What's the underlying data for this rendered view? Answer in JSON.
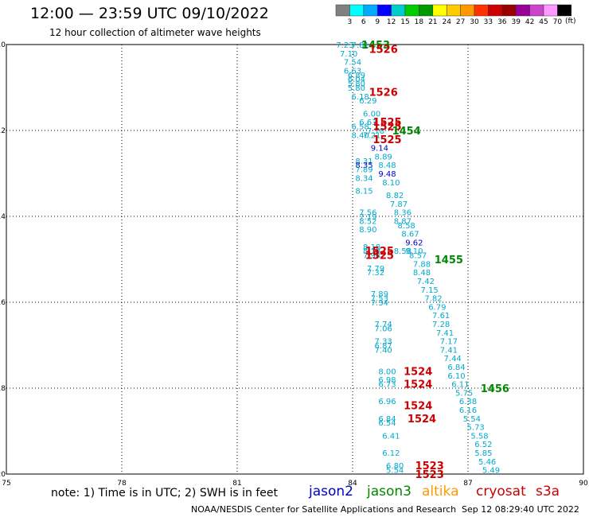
{
  "header": {
    "title": "12:00  —  23:59 UTC 09/10/2022",
    "subtitle": "12 hour collection of altimeter wave heights"
  },
  "legend_scale": {
    "colors": [
      "#808080",
      "#00ffff",
      "#00aaff",
      "#0000ff",
      "#00cccc",
      "#00cc00",
      "#009900",
      "#ffff00",
      "#ffcc00",
      "#ff9900",
      "#ff3300",
      "#cc0000",
      "#990000",
      "#990099",
      "#cc44cc",
      "#ff99ff",
      "#000000"
    ],
    "labels": [
      "3",
      "6",
      "9",
      "12",
      "15",
      "18",
      "21",
      "24",
      "27",
      "30",
      "33",
      "36",
      "39",
      "42",
      "45",
      "70"
    ],
    "unit": "(ft)"
  },
  "footer": {
    "note": "note:  1)  Time is in UTC;  2)  SWH is in feet",
    "credit": "NOAA/NESDIS Center for Satellite Applications and Research",
    "timestamp": "Sep 12 08:29:40 UTC 2022"
  },
  "satellites": [
    {
      "label": "jason2",
      "color": "#0000cc"
    },
    {
      "label": "jason3",
      "color": "#008800"
    },
    {
      "label": "altika",
      "color": "#ff9900"
    },
    {
      "label": "cryosat",
      "color": "#cc0000"
    },
    {
      "label": "s3a",
      "color": "#cc0000"
    }
  ],
  "chart_data": {
    "type": "scatter",
    "xlim": [
      75,
      90
    ],
    "ylim": [
      -20,
      -10
    ],
    "x_ticks": [
      "75",
      "78",
      "81",
      "84",
      "87",
      "90"
    ],
    "y_ticks": [
      "-10",
      "-12",
      "-14",
      "-16",
      "-18",
      "-20"
    ],
    "grid": true,
    "wave_heights": [
      {
        "lon": 83.8,
        "lat": -10.0,
        "v": "7.23",
        "c": "#00aacc"
      },
      {
        "lon": 84.2,
        "lat": -10.0,
        "v": "7.81",
        "c": "#00aacc"
      },
      {
        "lon": 83.9,
        "lat": -10.2,
        "v": "7.10",
        "c": "#00aacc"
      },
      {
        "lon": 84.0,
        "lat": -10.4,
        "v": "7.54",
        "c": "#00aacc"
      },
      {
        "lon": 84.0,
        "lat": -10.6,
        "v": "6.63",
        "c": "#00aacc"
      },
      {
        "lon": 84.1,
        "lat": -10.7,
        "v": "6.89",
        "c": "#00aacc"
      },
      {
        "lon": 84.1,
        "lat": -10.8,
        "v": "6.04",
        "c": "#00aacc"
      },
      {
        "lon": 84.1,
        "lat": -10.9,
        "v": "5.80",
        "c": "#00aacc"
      },
      {
        "lon": 84.1,
        "lat": -11.0,
        "v": "5.80",
        "c": "#00aacc"
      },
      {
        "lon": 84.2,
        "lat": -11.2,
        "v": "6.18",
        "c": "#00aacc"
      },
      {
        "lon": 84.4,
        "lat": -11.3,
        "v": "6.29",
        "c": "#00aacc"
      },
      {
        "lon": 84.5,
        "lat": -11.6,
        "v": "6.00",
        "c": "#00aacc"
      },
      {
        "lon": 84.4,
        "lat": -11.8,
        "v": "6.63",
        "c": "#00aacc"
      },
      {
        "lon": 84.2,
        "lat": -11.9,
        "v": "6.58",
        "c": "#00aacc"
      },
      {
        "lon": 84.6,
        "lat": -12.0,
        "v": "7.78",
        "c": "#00aacc"
      },
      {
        "lon": 84.5,
        "lat": -12.1,
        "v": "7.21",
        "c": "#00aacc"
      },
      {
        "lon": 84.2,
        "lat": -12.1,
        "v": "8.40",
        "c": "#00aacc"
      },
      {
        "lon": 84.7,
        "lat": -12.4,
        "v": "9.14",
        "c": "#0000cc"
      },
      {
        "lon": 84.8,
        "lat": -12.6,
        "v": "8.89",
        "c": "#00aacc"
      },
      {
        "lon": 84.3,
        "lat": -12.7,
        "v": "8.31",
        "c": "#00aacc"
      },
      {
        "lon": 84.3,
        "lat": -12.8,
        "v": "8.35",
        "c": "#0000cc"
      },
      {
        "lon": 84.9,
        "lat": -12.8,
        "v": "8.48",
        "c": "#00aacc"
      },
      {
        "lon": 84.3,
        "lat": -12.9,
        "v": "7.89",
        "c": "#00aacc"
      },
      {
        "lon": 84.3,
        "lat": -13.1,
        "v": "8.34",
        "c": "#00aacc"
      },
      {
        "lon": 84.9,
        "lat": -13.0,
        "v": "9.48",
        "c": "#0000cc"
      },
      {
        "lon": 85.0,
        "lat": -13.2,
        "v": "8.10",
        "c": "#00aacc"
      },
      {
        "lon": 84.3,
        "lat": -13.4,
        "v": "8.15",
        "c": "#00aacc"
      },
      {
        "lon": 85.1,
        "lat": -13.5,
        "v": "8.82",
        "c": "#00aacc"
      },
      {
        "lon": 85.2,
        "lat": -13.7,
        "v": "7.87",
        "c": "#00aacc"
      },
      {
        "lon": 84.4,
        "lat": -13.9,
        "v": "7.56",
        "c": "#00aacc"
      },
      {
        "lon": 84.4,
        "lat": -14.0,
        "v": "7.19",
        "c": "#00aacc"
      },
      {
        "lon": 85.3,
        "lat": -13.9,
        "v": "8.36",
        "c": "#00aacc"
      },
      {
        "lon": 85.3,
        "lat": -14.1,
        "v": "8.87",
        "c": "#00aacc"
      },
      {
        "lon": 84.4,
        "lat": -14.1,
        "v": "8.52",
        "c": "#00aacc"
      },
      {
        "lon": 85.4,
        "lat": -14.2,
        "v": "8.58",
        "c": "#00aacc"
      },
      {
        "lon": 84.4,
        "lat": -14.3,
        "v": "8.90",
        "c": "#00aacc"
      },
      {
        "lon": 85.5,
        "lat": -14.4,
        "v": "8.67",
        "c": "#00aacc"
      },
      {
        "lon": 85.6,
        "lat": -14.6,
        "v": "9.62",
        "c": "#0000cc"
      },
      {
        "lon": 84.5,
        "lat": -14.7,
        "v": "8.18",
        "c": "#00aacc"
      },
      {
        "lon": 84.5,
        "lat": -14.8,
        "v": "8.18",
        "c": "#00aacc"
      },
      {
        "lon": 85.3,
        "lat": -14.8,
        "v": "8.58",
        "c": "#00aacc"
      },
      {
        "lon": 85.6,
        "lat": -14.8,
        "v": "9.10",
        "c": "#00aacc"
      },
      {
        "lon": 84.5,
        "lat": -14.9,
        "v": "7.94",
        "c": "#00aacc"
      },
      {
        "lon": 85.7,
        "lat": -14.9,
        "v": "8.57",
        "c": "#00aacc"
      },
      {
        "lon": 85.8,
        "lat": -15.1,
        "v": "7.88",
        "c": "#00aacc"
      },
      {
        "lon": 84.6,
        "lat": -15.2,
        "v": "7.79",
        "c": "#00aacc"
      },
      {
        "lon": 85.8,
        "lat": -15.3,
        "v": "8.48",
        "c": "#00aacc"
      },
      {
        "lon": 84.6,
        "lat": -15.3,
        "v": "7.32",
        "c": "#00aacc"
      },
      {
        "lon": 85.9,
        "lat": -15.5,
        "v": "7.42",
        "c": "#00aacc"
      },
      {
        "lon": 86.0,
        "lat": -15.7,
        "v": "7.15",
        "c": "#00aacc"
      },
      {
        "lon": 84.7,
        "lat": -15.8,
        "v": "7.89",
        "c": "#00aacc"
      },
      {
        "lon": 86.1,
        "lat": -15.9,
        "v": "7.82",
        "c": "#00aacc"
      },
      {
        "lon": 84.7,
        "lat": -15.9,
        "v": "7.53",
        "c": "#00aacc"
      },
      {
        "lon": 84.7,
        "lat": -16.0,
        "v": "7.34",
        "c": "#00aacc"
      },
      {
        "lon": 86.2,
        "lat": -16.1,
        "v": "6.79",
        "c": "#00aacc"
      },
      {
        "lon": 86.3,
        "lat": -16.3,
        "v": "7.61",
        "c": "#00aacc"
      },
      {
        "lon": 84.8,
        "lat": -16.5,
        "v": "7.74",
        "c": "#00aacc"
      },
      {
        "lon": 86.3,
        "lat": -16.5,
        "v": "7.28",
        "c": "#00aacc"
      },
      {
        "lon": 84.8,
        "lat": -16.6,
        "v": "7.06",
        "c": "#00aacc"
      },
      {
        "lon": 86.4,
        "lat": -16.7,
        "v": "7.41",
        "c": "#00aacc"
      },
      {
        "lon": 84.8,
        "lat": -16.9,
        "v": "7.33",
        "c": "#00aacc"
      },
      {
        "lon": 86.5,
        "lat": -16.9,
        "v": "7.17",
        "c": "#00aacc"
      },
      {
        "lon": 84.8,
        "lat": -17.0,
        "v": "6.87",
        "c": "#00aacc"
      },
      {
        "lon": 86.5,
        "lat": -17.1,
        "v": "7.41",
        "c": "#00aacc"
      },
      {
        "lon": 84.8,
        "lat": -17.1,
        "v": "7.40",
        "c": "#00aacc"
      },
      {
        "lon": 86.6,
        "lat": -17.3,
        "v": "7.44",
        "c": "#00aacc"
      },
      {
        "lon": 86.7,
        "lat": -17.5,
        "v": "6.84",
        "c": "#00aacc"
      },
      {
        "lon": 84.9,
        "lat": -17.6,
        "v": "8.00",
        "c": "#00aacc"
      },
      {
        "lon": 86.7,
        "lat": -17.7,
        "v": "6.10",
        "c": "#00aacc"
      },
      {
        "lon": 84.9,
        "lat": -17.8,
        "v": "6.98",
        "c": "#00aacc"
      },
      {
        "lon": 84.9,
        "lat": -17.9,
        "v": "6.73",
        "c": "#00aacc"
      },
      {
        "lon": 86.8,
        "lat": -17.9,
        "v": "6.11",
        "c": "#00aacc"
      },
      {
        "lon": 86.9,
        "lat": -18.1,
        "v": "5.75",
        "c": "#00aacc"
      },
      {
        "lon": 84.9,
        "lat": -18.3,
        "v": "6.96",
        "c": "#00aacc"
      },
      {
        "lon": 87.0,
        "lat": -18.3,
        "v": "6.38",
        "c": "#00aacc"
      },
      {
        "lon": 87.0,
        "lat": -18.5,
        "v": "6.16",
        "c": "#00aacc"
      },
      {
        "lon": 84.9,
        "lat": -18.7,
        "v": "6.84",
        "c": "#00aacc"
      },
      {
        "lon": 84.9,
        "lat": -18.8,
        "v": "6.54",
        "c": "#00aacc"
      },
      {
        "lon": 87.1,
        "lat": -18.7,
        "v": "5.54",
        "c": "#00aacc"
      },
      {
        "lon": 87.2,
        "lat": -18.9,
        "v": "5.73",
        "c": "#00aacc"
      },
      {
        "lon": 85.0,
        "lat": -19.1,
        "v": "6.41",
        "c": "#00aacc"
      },
      {
        "lon": 87.3,
        "lat": -19.1,
        "v": "5.58",
        "c": "#00aacc"
      },
      {
        "lon": 87.4,
        "lat": -19.3,
        "v": "6.52",
        "c": "#00aacc"
      },
      {
        "lon": 85.0,
        "lat": -19.5,
        "v": "6.12",
        "c": "#00aacc"
      },
      {
        "lon": 87.4,
        "lat": -19.5,
        "v": "5.85",
        "c": "#00aacc"
      },
      {
        "lon": 87.5,
        "lat": -19.7,
        "v": "5.46",
        "c": "#00aacc"
      },
      {
        "lon": 85.1,
        "lat": -19.8,
        "v": "6.80",
        "c": "#00aacc"
      },
      {
        "lon": 87.6,
        "lat": -19.9,
        "v": "5.49",
        "c": "#00aacc"
      },
      {
        "lon": 85.1,
        "lat": -19.9,
        "v": "5.54",
        "c": "#00aacc"
      }
    ],
    "pass_times": [
      {
        "lon": 84.6,
        "lat": -10.0,
        "v": "1453",
        "c": "#008800"
      },
      {
        "lon": 84.8,
        "lat": -10.1,
        "v": "1526",
        "c": "#cc0000"
      },
      {
        "lon": 84.8,
        "lat": -11.1,
        "v": "1526",
        "c": "#cc0000"
      },
      {
        "lon": 84.9,
        "lat": -11.8,
        "v": "1525",
        "c": "#cc0000"
      },
      {
        "lon": 84.9,
        "lat": -11.9,
        "v": "1525",
        "c": "#cc0000"
      },
      {
        "lon": 85.4,
        "lat": -12.0,
        "v": "1454",
        "c": "#008800"
      },
      {
        "lon": 84.9,
        "lat": -12.2,
        "v": "1525",
        "c": "#cc0000"
      },
      {
        "lon": 84.7,
        "lat": -14.8,
        "v": "1525",
        "c": "#cc0000"
      },
      {
        "lon": 84.7,
        "lat": -14.9,
        "v": "1525",
        "c": "#cc0000"
      },
      {
        "lon": 86.5,
        "lat": -15.0,
        "v": "1455",
        "c": "#008800"
      },
      {
        "lon": 85.7,
        "lat": -17.6,
        "v": "1524",
        "c": "#cc0000"
      },
      {
        "lon": 85.7,
        "lat": -17.9,
        "v": "1524",
        "c": "#cc0000"
      },
      {
        "lon": 87.7,
        "lat": -18.0,
        "v": "1456",
        "c": "#008800"
      },
      {
        "lon": 85.7,
        "lat": -18.4,
        "v": "1524",
        "c": "#cc0000"
      },
      {
        "lon": 85.8,
        "lat": -18.7,
        "v": "1524",
        "c": "#cc0000"
      },
      {
        "lon": 86.0,
        "lat": -19.8,
        "v": "1523",
        "c": "#cc0000"
      },
      {
        "lon": 86.0,
        "lat": -20.0,
        "v": "1523",
        "c": "#cc0000"
      }
    ]
  }
}
